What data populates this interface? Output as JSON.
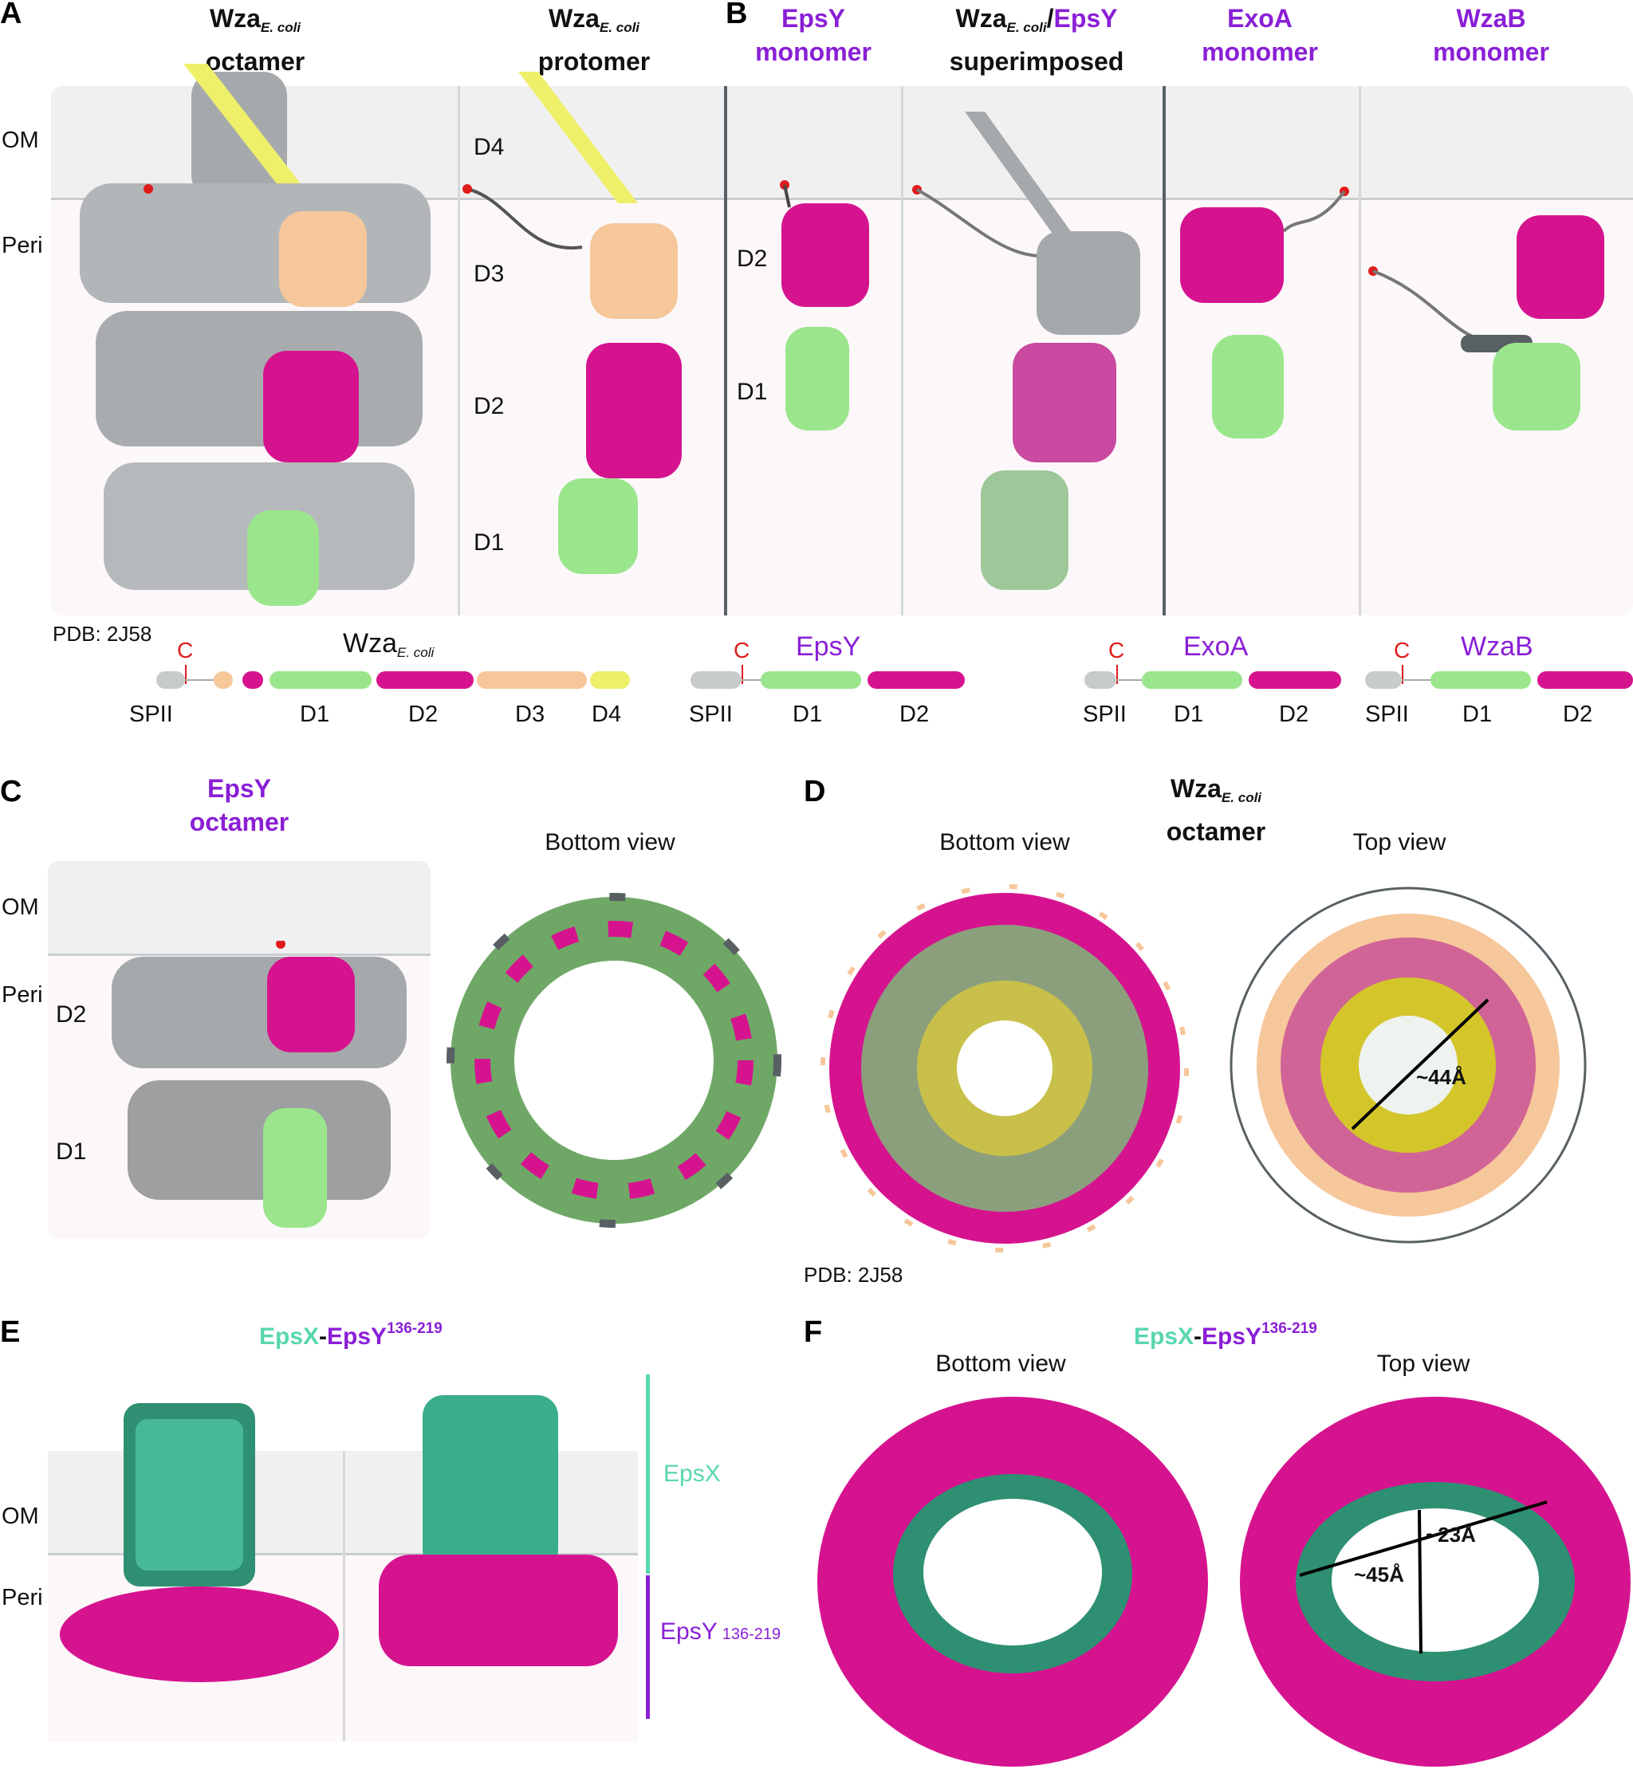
{
  "colors": {
    "grey": "#a6a9ab",
    "beige": "#f6c79b",
    "magenta": "#d6138f",
    "green": "#9be68c",
    "yellow": "#eef06a",
    "purple": "#8a1fd6",
    "teal": "#59d6b0",
    "dark_teal": "#2e8f72",
    "red": "#e01b1b",
    "om_band": "#f1f0f1",
    "peri_band": "#fcf8fa"
  },
  "panel_letters": {
    "a": "A",
    "b": "B",
    "c": "C",
    "d": "D",
    "e": "E",
    "f": "F"
  },
  "labels": {
    "om": "OM",
    "peri": "Peri"
  },
  "panelA": {
    "title1_main": "Wza",
    "title1_sub": "E. coli",
    "title1_line2": "octamer",
    "title2_main": "Wza",
    "title2_sub": "E. coli",
    "title2_line2": "protomer",
    "domains": [
      "D4",
      "D3",
      "D2",
      "D1"
    ],
    "pdb": "PDB: 2J58",
    "diagram": {
      "name_main": "Wza",
      "name_sub": "E. coli",
      "c_label": "C",
      "labels": [
        "SPII",
        "D1",
        "D2",
        "D3",
        "D4"
      ]
    }
  },
  "panelB": {
    "epsy_title": "EpsY",
    "epsy_line2": "monomer",
    "super_main": "Wza",
    "super_sub": "E. coli",
    "super_slash": "/",
    "super_epsy": "EpsY",
    "super_line2": "superimposed",
    "exoa_title": "ExoA",
    "exoa_line2": "monomer",
    "wzab_title": "WzaB",
    "wzab_line2": "monomer",
    "domains": [
      "D2",
      "D1"
    ],
    "diagram_epsy": {
      "name": "EpsY",
      "c_label": "C",
      "labels": [
        "SPII",
        "D1",
        "D2"
      ]
    },
    "diagram_exoa": {
      "name": "ExoA",
      "c_label": "C",
      "labels": [
        "SPII",
        "D1",
        "D2"
      ]
    },
    "diagram_wzab": {
      "name": "WzaB",
      "c_label": "C",
      "labels": [
        "SPII",
        "D1",
        "D2"
      ]
    }
  },
  "panelC": {
    "title": "EpsY",
    "title_line2": "octamer",
    "domains": [
      "D2",
      "D1"
    ],
    "bottom_view": "Bottom view"
  },
  "panelD": {
    "title_main": "Wza",
    "title_sub": "E. coli",
    "title_line2": "octamer",
    "bottom_view": "Bottom view",
    "top_view": "Top view",
    "measure": "~44Å",
    "pdb": "PDB: 2J58"
  },
  "panelE": {
    "title_a": "EpsX",
    "title_dash": "-",
    "title_b": "EpsY",
    "title_sup": "136-219",
    "legend_epsx": "EpsX",
    "legend_epsy": "EpsY",
    "legend_epsy_sup": "136-219"
  },
  "panelF": {
    "title_a": "EpsX",
    "title_dash": "-",
    "title_b": "EpsY",
    "title_sup": "136-219",
    "bottom_view": "Bottom view",
    "top_view": "Top view",
    "measure_long": "~45Å",
    "measure_short": "~23Å"
  }
}
